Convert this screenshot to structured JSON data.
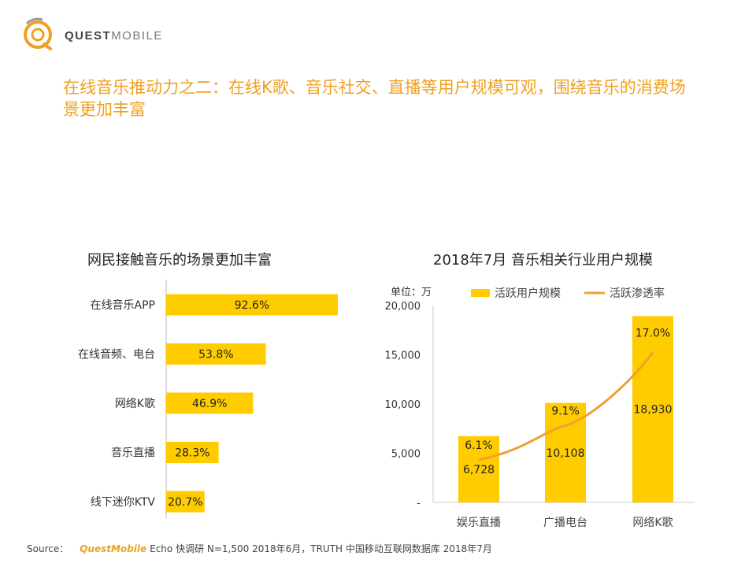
{
  "brand": {
    "name_bold": "QUEST",
    "name_light": "MOBILE",
    "accent": "#F0A020"
  },
  "slide_title": "在线音乐推动力之二：在线K歌、音乐社交、直播等用户规模可观，围绕音乐的消费场景更加丰富",
  "chart_data": [
    {
      "type": "bar",
      "orientation": "horizontal",
      "title": "网民接触音乐的场景更加丰富",
      "categories": [
        "在线音乐APP",
        "在线音频、电台",
        "网络K歌",
        "音乐直播",
        "线下迷你KTV"
      ],
      "values": [
        92.6,
        53.8,
        46.9,
        28.3,
        20.7
      ],
      "value_labels": [
        "92.6%",
        "53.8%",
        "46.9%",
        "28.3%",
        "20.7%"
      ],
      "xlim": [
        0,
        100
      ],
      "bar_color": "#FFCC00",
      "grid": false
    },
    {
      "type": "bar+line",
      "title": "2018年7月 音乐相关行业用户规模",
      "unit_label": "单位：万",
      "categories": [
        "娱乐直播",
        "广播电台",
        "网络K歌"
      ],
      "series": [
        {
          "name": "活跃用户规模",
          "type": "bar",
          "values": [
            6728,
            10108,
            18930
          ],
          "value_labels": [
            "6,728",
            "10,108",
            "18,930"
          ],
          "color": "#FFCC00"
        },
        {
          "name": "活跃渗透率",
          "type": "line",
          "values": [
            6.1,
            9.1,
            17.0
          ],
          "value_labels": [
            "6.1%",
            "9.1%",
            "17.0%"
          ],
          "color": "#F0A030"
        }
      ],
      "ylim": [
        0,
        20000
      ],
      "yticks": [
        0,
        5000,
        10000,
        15000,
        20000
      ],
      "ytick_labels": [
        "-",
        "5,000",
        "10,000",
        "15,000",
        "20,000"
      ],
      "legend_position": "top",
      "grid": false
    }
  ],
  "source": {
    "prefix": "Source：",
    "brand": "QuestMobile",
    "text": "Echo 快调研 N=1,500 2018年6月，TRUTH 中国移动互联网数据库 2018年7月"
  }
}
